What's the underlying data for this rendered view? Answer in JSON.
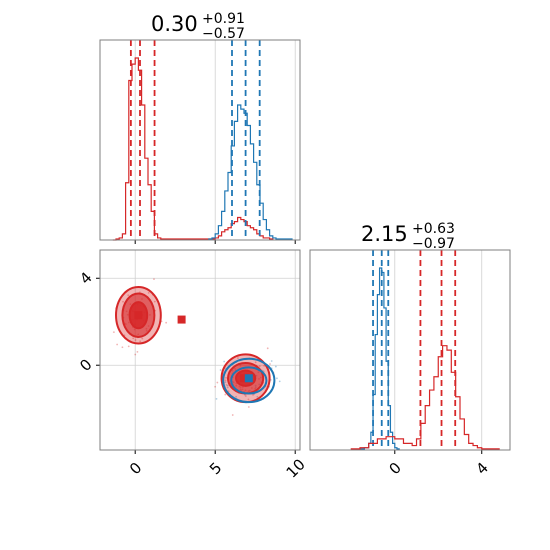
{
  "colors": {
    "red": "#d62728",
    "blue": "#1f77b4",
    "grid": "#d0d0d0",
    "frame": "#7f7f7f"
  },
  "titles": {
    "p0": {
      "main": "0.30",
      "sup": "+0.91",
      "sub": "−0.57"
    },
    "p1": {
      "main": "2.15",
      "sup": "+0.63",
      "sub": "−0.97"
    }
  },
  "chart_data": [
    {
      "type": "histogram",
      "panel": "marginal of parameter 1 (top-left)",
      "xlim": [
        -2.2,
        10.3
      ],
      "x_ticks": [
        0,
        5,
        10
      ],
      "grid": true,
      "series": [
        {
          "color": "red",
          "bins_x": [
            -1.4,
            -1.2,
            -1.0,
            -0.8,
            -0.6,
            -0.4,
            -0.2,
            0.0,
            0.2,
            0.4,
            0.6,
            0.8,
            1.0,
            1.2,
            1.4,
            1.6,
            2.5,
            3.0,
            3.5,
            4.0,
            4.5,
            5.0,
            5.2,
            5.4,
            5.6,
            5.8,
            6.0,
            6.2,
            6.4,
            6.6,
            6.8,
            7.0,
            7.2,
            7.4,
            7.6,
            7.8,
            8.0,
            8.2,
            8.4,
            8.6
          ],
          "heights": [
            0,
            0.005,
            0.01,
            0.03,
            0.28,
            0.78,
            0.86,
            0.89,
            0.83,
            0.66,
            0.4,
            0.27,
            0.14,
            0.03,
            0.01,
            0.005,
            0.005,
            0.005,
            0.005,
            0.005,
            0.005,
            0.01,
            0.02,
            0.04,
            0.05,
            0.06,
            0.08,
            0.09,
            0.11,
            0.1,
            0.09,
            0.07,
            0.06,
            0.05,
            0.03,
            0.02,
            0.01,
            0.01,
            0.005,
            0
          ],
          "quantiles": [
            -0.27,
            0.3,
            1.21
          ]
        },
        {
          "color": "blue",
          "bins_x": [
            4.6,
            4.8,
            5.0,
            5.2,
            5.4,
            5.6,
            5.8,
            6.0,
            6.2,
            6.4,
            6.6,
            6.8,
            7.0,
            7.2,
            7.4,
            7.6,
            7.8,
            8.0,
            8.2,
            8.4,
            8.6,
            8.8,
            9.0,
            9.2,
            9.5,
            9.8
          ],
          "heights": [
            0.005,
            0.01,
            0.03,
            0.07,
            0.14,
            0.24,
            0.33,
            0.46,
            0.58,
            0.66,
            0.64,
            0.62,
            0.56,
            0.47,
            0.38,
            0.27,
            0.18,
            0.1,
            0.05,
            0.02,
            0.01,
            0.005,
            0.005,
            0.005,
            0.005,
            0
          ],
          "quantiles": [
            6.05,
            6.9,
            7.78
          ]
        }
      ]
    },
    {
      "type": "scatter",
      "panel": "joint of parameter 1 (x) and parameter 2 (y) (bottom-left)",
      "xlim": [
        -2.2,
        10.3
      ],
      "ylim": [
        -3.9,
        5.3
      ],
      "x_ticks": [
        0,
        5,
        10
      ],
      "y_ticks": [
        0,
        4
      ],
      "grid": true,
      "clusters": [
        {
          "color": "red",
          "center": [
            0.2,
            2.3
          ],
          "contours": [
            [
              1.4,
              1.3
            ],
            [
              1.0,
              1.0
            ],
            [
              0.55,
              0.6
            ]
          ]
        },
        {
          "color": "red",
          "center": [
            6.9,
            -0.6
          ],
          "contours": [
            [
              1.5,
              1.1
            ],
            [
              1.1,
              0.7
            ],
            [
              0.6,
              0.35
            ]
          ]
        },
        {
          "color": "blue",
          "center": [
            7.1,
            -0.7
          ],
          "contours": [
            [
              1.6,
              1.0
            ],
            [
              1.1,
              0.6
            ]
          ]
        }
      ],
      "markers": [
        {
          "color": "red",
          "x": 0.2,
          "y": 2.3
        },
        {
          "color": "red",
          "x": 2.9,
          "y": 2.1
        },
        {
          "color": "red",
          "x": 6.8,
          "y": -0.6
        },
        {
          "color": "blue",
          "x": 7.1,
          "y": -0.6
        }
      ]
    },
    {
      "type": "histogram",
      "panel": "marginal of parameter 2 (right)",
      "xlim": [
        -3.9,
        5.3
      ],
      "x_ticks": [
        0,
        4
      ],
      "grid": true,
      "series": [
        {
          "color": "blue",
          "bins_x": [
            -1.6,
            -1.4,
            -1.2,
            -1.1,
            -1.0,
            -0.9,
            -0.8,
            -0.7,
            -0.6,
            -0.5,
            -0.4,
            -0.3,
            -0.2,
            -0.1,
            0.0,
            0.1,
            0.2
          ],
          "heights": [
            0.005,
            0.01,
            0.03,
            0.08,
            0.25,
            0.52,
            0.7,
            0.82,
            0.8,
            0.64,
            0.4,
            0.2,
            0.08,
            0.03,
            0.01,
            0.005,
            0
          ],
          "quantiles": [
            -1.0,
            -0.6,
            -0.3
          ]
        },
        {
          "color": "red",
          "bins_x": [
            -2.0,
            -1.6,
            -1.2,
            -0.8,
            -0.4,
            0.0,
            0.4,
            0.8,
            1.0,
            1.2,
            1.4,
            1.6,
            1.8,
            2.0,
            2.2,
            2.4,
            2.6,
            2.8,
            3.0,
            3.2,
            3.4,
            3.6,
            3.8,
            4.0,
            4.4,
            4.8
          ],
          "heights": [
            0.005,
            0.01,
            0.03,
            0.05,
            0.06,
            0.05,
            0.03,
            0.02,
            0.05,
            0.12,
            0.2,
            0.27,
            0.33,
            0.42,
            0.47,
            0.45,
            0.35,
            0.24,
            0.14,
            0.07,
            0.03,
            0.02,
            0.01,
            0.005,
            0.005,
            0
          ],
          "quantiles": [
            1.18,
            2.15,
            2.78
          ]
        }
      ]
    }
  ]
}
